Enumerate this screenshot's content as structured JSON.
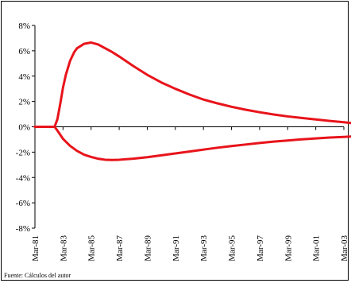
{
  "chart_data": {
    "type": "line",
    "title": "",
    "xlabel": "",
    "ylabel": "",
    "x_categories": [
      "Mar-81",
      "Mar-83",
      "Mar-85",
      "Mar-87",
      "Mar-89",
      "Mar-91",
      "Mar-93",
      "Mar-95",
      "Mar-97",
      "Mar-99",
      "Mar-01",
      "Mar-03"
    ],
    "y_ticks": [
      "8%",
      "6%",
      "4%",
      "2%",
      "0%",
      "-2%",
      "-4%",
      "-6%",
      "-8%"
    ],
    "y_tick_values": [
      8,
      6,
      4,
      2,
      0,
      -2,
      -4,
      -6,
      -8
    ],
    "ylim": [
      -8,
      8
    ],
    "grid": false,
    "legend": "none",
    "line_color": "#e8141b",
    "series": [
      {
        "x": [
          0,
          0.5,
          1,
          1.2,
          1.4,
          1.6,
          1.8,
          2,
          2.2,
          2.5,
          2.8,
          3,
          3.5,
          4,
          4.5,
          5,
          5.5,
          6,
          7,
          8,
          9,
          10,
          11,
          12,
          13,
          14,
          15,
          16,
          17,
          18,
          19,
          20,
          21,
          22,
          22.5
        ],
        "values": [
          0,
          0,
          0,
          0,
          0,
          0.6,
          1.8,
          3.1,
          4.1,
          5.2,
          5.9,
          6.2,
          6.55,
          6.65,
          6.5,
          6.2,
          5.9,
          5.55,
          4.8,
          4.1,
          3.5,
          3.0,
          2.55,
          2.15,
          1.85,
          1.58,
          1.35,
          1.15,
          0.97,
          0.82,
          0.7,
          0.58,
          0.46,
          0.36,
          0.3
        ]
      },
      {
        "x": [
          0,
          0.5,
          1,
          1.2,
          1.4,
          1.6,
          2,
          2.5,
          3,
          3.5,
          4,
          4.5,
          5,
          5.5,
          6,
          7,
          8,
          9,
          10,
          11,
          12,
          13,
          14,
          15,
          16,
          17,
          18,
          19,
          20,
          21,
          22,
          22.5
        ],
        "values": [
          0,
          0,
          0,
          0,
          0,
          -0.3,
          -0.95,
          -1.5,
          -1.9,
          -2.2,
          -2.38,
          -2.52,
          -2.6,
          -2.62,
          -2.6,
          -2.52,
          -2.4,
          -2.25,
          -2.1,
          -1.95,
          -1.8,
          -1.65,
          -1.52,
          -1.4,
          -1.28,
          -1.17,
          -1.08,
          -0.99,
          -0.92,
          -0.85,
          -0.8,
          -0.77
        ]
      }
    ]
  },
  "footer": {
    "source": "Fuente: Cálculos del autor"
  }
}
